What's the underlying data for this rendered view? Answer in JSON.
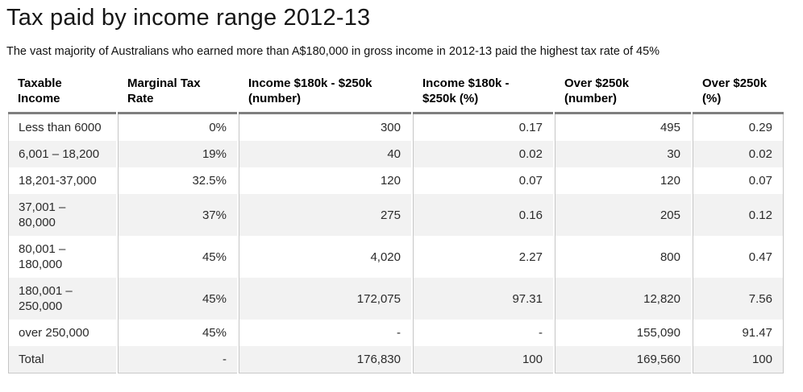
{
  "page": {
    "title": "Tax paid by income range 2012-13",
    "subtitle": "The vast majority of Australians who earned more than A$180,000 in gross income in 2012-13 paid the highest tax rate of 45%"
  },
  "table": {
    "column_headers": [
      "Taxable\nIncome",
      "Marginal Tax\nRate",
      "Income $180k - $250k\n(number)",
      "Income $180k -\n$250k (%)",
      "Over $250k\n(number)",
      "Over $250k\n(%)"
    ],
    "rows": [
      [
        "Less than 6000",
        "0%",
        "300",
        "0.17",
        "495",
        "0.29"
      ],
      [
        "6,001 – 18,200",
        "19%",
        "40",
        "0.02",
        "30",
        "0.02"
      ],
      [
        "18,201-37,000",
        "32.5%",
        "120",
        "0.07",
        "120",
        "0.07"
      ],
      [
        "37,001 –\n80,000",
        "37%",
        "275",
        "0.16",
        "205",
        "0.12"
      ],
      [
        "80,001 –\n180,000",
        "45%",
        "4,020",
        "2.27",
        "800",
        "0.47"
      ],
      [
        "180,001 –\n250,000",
        "45%",
        "172,075",
        "97.31",
        "12,820",
        "7.56"
      ],
      [
        "over 250,000",
        "45%",
        "-",
        "-",
        "155,090",
        "91.47"
      ],
      [
        "Total",
        "-",
        "176,830",
        "100",
        "169,560",
        "100"
      ]
    ]
  },
  "colors": {
    "header_rule": "#7f7f7f",
    "grid_line": "#c6c6c6",
    "bottom_rule": "#c9c9c9",
    "zebra_stripe": "#f2f2f2",
    "title_text": "#171717",
    "body_text": "#2b2b2b"
  },
  "chart_data": {
    "type": "table",
    "title": "Tax paid by income range 2012-13",
    "subtitle": "The vast majority of Australians who earned more than A$180,000 in gross income in 2012-13 paid the highest tax rate of 45%",
    "columns": [
      "Taxable Income",
      "Marginal Tax Rate",
      "Income $180k - $250k (number)",
      "Income $180k - $250k (%)",
      "Over $250k (number)",
      "Over $250k (%)"
    ],
    "rows": [
      {
        "taxable_income": "Less than 6000",
        "marginal_tax_rate": "0%",
        "income_180k_250k_number": 300,
        "income_180k_250k_pct": 0.17,
        "over_250k_number": 495,
        "over_250k_pct": 0.29
      },
      {
        "taxable_income": "6,001 – 18,200",
        "marginal_tax_rate": "19%",
        "income_180k_250k_number": 40,
        "income_180k_250k_pct": 0.02,
        "over_250k_number": 30,
        "over_250k_pct": 0.02
      },
      {
        "taxable_income": "18,201-37,000",
        "marginal_tax_rate": "32.5%",
        "income_180k_250k_number": 120,
        "income_180k_250k_pct": 0.07,
        "over_250k_number": 120,
        "over_250k_pct": 0.07
      },
      {
        "taxable_income": "37,001 – 80,000",
        "marginal_tax_rate": "37%",
        "income_180k_250k_number": 275,
        "income_180k_250k_pct": 0.16,
        "over_250k_number": 205,
        "over_250k_pct": 0.12
      },
      {
        "taxable_income": "80,001 – 180,000",
        "marginal_tax_rate": "45%",
        "income_180k_250k_number": 4020,
        "income_180k_250k_pct": 2.27,
        "over_250k_number": 800,
        "over_250k_pct": 0.47
      },
      {
        "taxable_income": "180,001 – 250,000",
        "marginal_tax_rate": "45%",
        "income_180k_250k_number": 172075,
        "income_180k_250k_pct": 97.31,
        "over_250k_number": 12820,
        "over_250k_pct": 7.56
      },
      {
        "taxable_income": "over 250,000",
        "marginal_tax_rate": "45%",
        "income_180k_250k_number": null,
        "income_180k_250k_pct": null,
        "over_250k_number": 155090,
        "over_250k_pct": 91.47
      }
    ],
    "total": {
      "taxable_income": "Total",
      "marginal_tax_rate": null,
      "income_180k_250k_number": 176830,
      "income_180k_250k_pct": 100,
      "over_250k_number": 169560,
      "over_250k_pct": 100
    },
    "layout": {
      "zebra_striping": true,
      "header_divider": "thick-gray",
      "column_dividers": true
    }
  }
}
